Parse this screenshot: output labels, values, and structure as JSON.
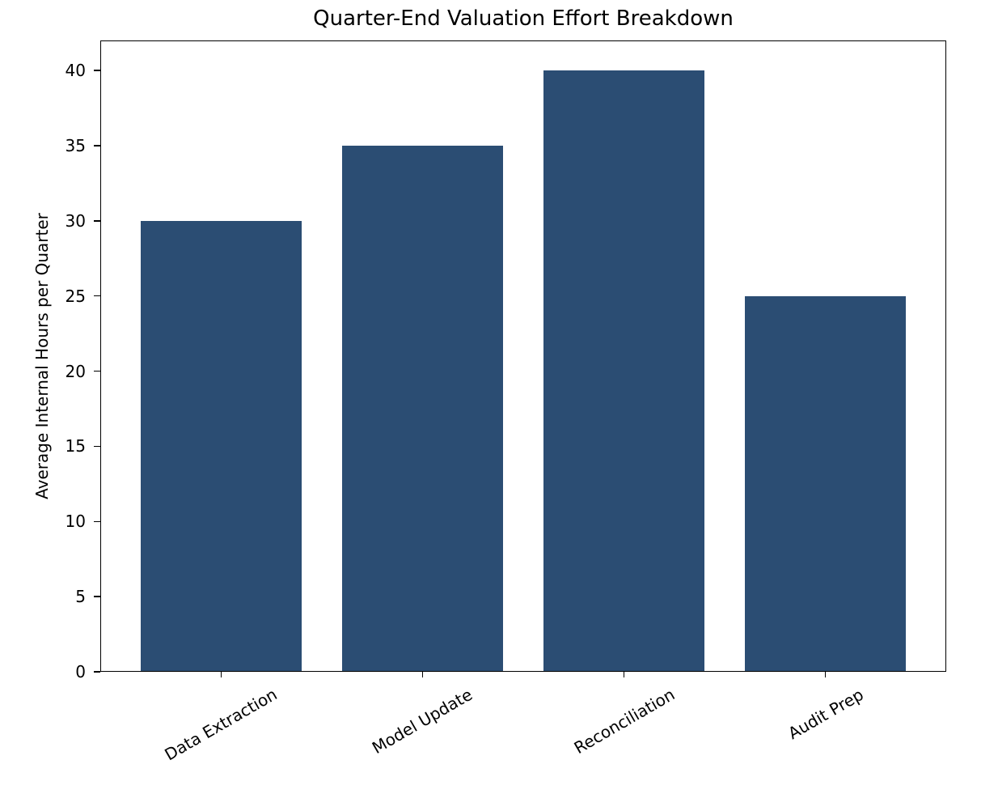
{
  "chart_data": {
    "type": "bar",
    "title": "Quarter-End Valuation Effort Breakdown",
    "xlabel": "",
    "ylabel": "Average Internal Hours per Quarter",
    "categories": [
      "Data Extraction",
      "Model Update",
      "Reconciliation",
      "Audit Prep"
    ],
    "values": [
      30,
      35,
      40,
      25
    ],
    "yticks": [
      0,
      5,
      10,
      15,
      20,
      25,
      30,
      35,
      40
    ],
    "ylim": [
      0,
      42
    ],
    "x_tick_rotation_deg": 30,
    "grid": false,
    "legend": null,
    "colors": {
      "bar": "#2b4d73",
      "axis": "#000000",
      "text": "#000000",
      "background": "#ffffff"
    }
  }
}
